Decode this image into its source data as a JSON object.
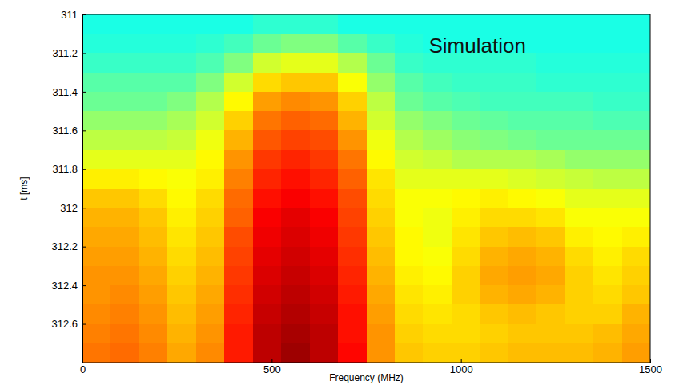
{
  "chart_data": {
    "type": "heatmap",
    "annotation": "Simulation",
    "x_label": "Frequency (MHz)",
    "y_label": "t [ms]",
    "xlim": [
      0,
      1500
    ],
    "xticks": [
      0,
      500,
      1000,
      1500
    ],
    "ylim": [
      311,
      312.8
    ],
    "yticks": [
      311,
      311.2,
      311.4,
      311.6,
      311.8,
      312,
      312.2,
      312.4,
      312.6
    ],
    "zlim": [
      0,
      1
    ],
    "x": [
      37.5,
      112.5,
      187.5,
      262.5,
      337.5,
      412.5,
      487.5,
      562.5,
      637.5,
      712.5,
      787.5,
      862.5,
      937.5,
      1012.5,
      1087.5,
      1162.5,
      1237.5,
      1312.5,
      1387.5,
      1462.5
    ],
    "y": [
      311.05,
      311.15,
      311.25,
      311.35,
      311.45,
      311.55,
      311.65,
      311.75,
      311.85,
      311.95,
      312.05,
      312.15,
      312.25,
      312.35,
      312.45,
      312.55,
      312.65,
      312.75
    ],
    "z": [
      [
        0.4,
        0.4,
        0.4,
        0.4,
        0.4,
        0.4,
        0.42,
        0.42,
        0.42,
        0.4,
        0.4,
        0.4,
        0.4,
        0.4,
        0.4,
        0.4,
        0.4,
        0.4,
        0.4,
        0.4
      ],
      [
        0.41,
        0.41,
        0.41,
        0.41,
        0.42,
        0.44,
        0.48,
        0.5,
        0.5,
        0.46,
        0.43,
        0.41,
        0.4,
        0.4,
        0.4,
        0.4,
        0.4,
        0.4,
        0.4,
        0.4
      ],
      [
        0.43,
        0.43,
        0.43,
        0.43,
        0.45,
        0.5,
        0.58,
        0.6,
        0.6,
        0.55,
        0.48,
        0.43,
        0.42,
        0.42,
        0.42,
        0.42,
        0.41,
        0.41,
        0.41,
        0.41
      ],
      [
        0.46,
        0.46,
        0.46,
        0.46,
        0.5,
        0.58,
        0.66,
        0.68,
        0.68,
        0.62,
        0.52,
        0.46,
        0.44,
        0.43,
        0.43,
        0.43,
        0.42,
        0.42,
        0.42,
        0.42
      ],
      [
        0.48,
        0.48,
        0.48,
        0.5,
        0.55,
        0.63,
        0.72,
        0.74,
        0.73,
        0.67,
        0.56,
        0.48,
        0.46,
        0.45,
        0.44,
        0.44,
        0.44,
        0.44,
        0.43,
        0.43
      ],
      [
        0.52,
        0.52,
        0.52,
        0.54,
        0.58,
        0.67,
        0.76,
        0.78,
        0.77,
        0.7,
        0.58,
        0.52,
        0.5,
        0.48,
        0.47,
        0.46,
        0.46,
        0.46,
        0.45,
        0.45
      ],
      [
        0.56,
        0.56,
        0.56,
        0.57,
        0.61,
        0.7,
        0.79,
        0.81,
        0.8,
        0.73,
        0.61,
        0.55,
        0.53,
        0.51,
        0.5,
        0.49,
        0.48,
        0.48,
        0.48,
        0.48
      ],
      [
        0.6,
        0.6,
        0.6,
        0.6,
        0.63,
        0.73,
        0.82,
        0.84,
        0.82,
        0.76,
        0.63,
        0.58,
        0.57,
        0.55,
        0.55,
        0.55,
        0.54,
        0.52,
        0.52,
        0.52
      ],
      [
        0.64,
        0.64,
        0.63,
        0.62,
        0.64,
        0.75,
        0.84,
        0.86,
        0.84,
        0.78,
        0.65,
        0.6,
        0.6,
        0.6,
        0.6,
        0.59,
        0.58,
        0.57,
        0.56,
        0.56
      ],
      [
        0.68,
        0.68,
        0.66,
        0.63,
        0.66,
        0.77,
        0.86,
        0.88,
        0.86,
        0.8,
        0.66,
        0.62,
        0.62,
        0.63,
        0.64,
        0.63,
        0.62,
        0.6,
        0.6,
        0.6
      ],
      [
        0.7,
        0.7,
        0.68,
        0.64,
        0.67,
        0.78,
        0.88,
        0.9,
        0.88,
        0.81,
        0.67,
        0.62,
        0.61,
        0.64,
        0.66,
        0.66,
        0.65,
        0.62,
        0.62,
        0.62
      ],
      [
        0.71,
        0.71,
        0.69,
        0.65,
        0.68,
        0.8,
        0.89,
        0.91,
        0.89,
        0.82,
        0.68,
        0.63,
        0.61,
        0.65,
        0.68,
        0.69,
        0.68,
        0.64,
        0.63,
        0.64
      ],
      [
        0.72,
        0.72,
        0.7,
        0.66,
        0.69,
        0.81,
        0.9,
        0.92,
        0.9,
        0.83,
        0.69,
        0.63,
        0.62,
        0.66,
        0.7,
        0.71,
        0.7,
        0.66,
        0.64,
        0.66
      ],
      [
        0.73,
        0.73,
        0.71,
        0.67,
        0.7,
        0.82,
        0.91,
        0.93,
        0.91,
        0.84,
        0.7,
        0.64,
        0.63,
        0.67,
        0.71,
        0.72,
        0.71,
        0.67,
        0.65,
        0.67
      ],
      [
        0.73,
        0.74,
        0.72,
        0.68,
        0.71,
        0.83,
        0.92,
        0.94,
        0.92,
        0.85,
        0.71,
        0.65,
        0.64,
        0.67,
        0.7,
        0.71,
        0.7,
        0.67,
        0.66,
        0.68
      ],
      [
        0.74,
        0.75,
        0.73,
        0.69,
        0.72,
        0.84,
        0.93,
        0.95,
        0.93,
        0.86,
        0.72,
        0.66,
        0.65,
        0.66,
        0.68,
        0.69,
        0.68,
        0.67,
        0.67,
        0.7
      ],
      [
        0.75,
        0.76,
        0.74,
        0.7,
        0.73,
        0.85,
        0.94,
        0.96,
        0.94,
        0.86,
        0.73,
        0.67,
        0.66,
        0.66,
        0.67,
        0.68,
        0.68,
        0.68,
        0.69,
        0.71
      ],
      [
        0.76,
        0.77,
        0.75,
        0.71,
        0.74,
        0.85,
        0.94,
        0.97,
        0.94,
        0.87,
        0.73,
        0.68,
        0.67,
        0.67,
        0.68,
        0.69,
        0.69,
        0.69,
        0.7,
        0.72
      ]
    ]
  }
}
